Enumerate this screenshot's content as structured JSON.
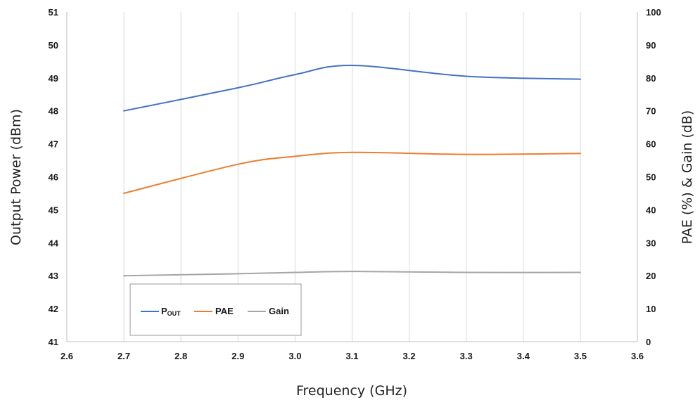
{
  "chart_data": {
    "type": "line",
    "title": "",
    "xlabel": "Frequency (GHz)",
    "ylabel": "Output Power (dBm)",
    "y2label": "PAE (%) & Gain (dB)",
    "xlim": [
      2.6,
      3.6
    ],
    "ylim": [
      41,
      51
    ],
    "y2lim": [
      0,
      100
    ],
    "x_ticks": [
      "2.6",
      "2.7",
      "2.8",
      "2.9",
      "3.0",
      "3.1",
      "3.2",
      "3.3",
      "3.4",
      "3.5",
      "3.6"
    ],
    "y_ticks": [
      "41",
      "42",
      "43",
      "44",
      "45",
      "46",
      "47",
      "48",
      "49",
      "50",
      "51"
    ],
    "y2_ticks": [
      "0",
      "10",
      "20",
      "30",
      "40",
      "50",
      "60",
      "70",
      "80",
      "90",
      "100"
    ],
    "grid": "vertical",
    "legend_position": "bottom-left",
    "x": [
      2.7,
      2.9,
      3.0,
      3.1,
      3.3,
      3.5
    ],
    "series": [
      {
        "name": "POUT",
        "name_main": "P",
        "name_sub": "OUT",
        "axis": "left",
        "color": "#4472c4",
        "values": [
          48.0,
          48.7,
          49.1,
          49.38,
          49.05,
          48.96
        ]
      },
      {
        "name": "PAE",
        "axis": "right",
        "color": "#ed7d31",
        "values": [
          45.0,
          53.8,
          56.2,
          57.4,
          56.8,
          57.1
        ]
      },
      {
        "name": "Gain",
        "axis": "right",
        "color": "#a5a5a5",
        "values": [
          20.0,
          20.6,
          21.0,
          21.3,
          21.0,
          21.0
        ]
      }
    ]
  }
}
